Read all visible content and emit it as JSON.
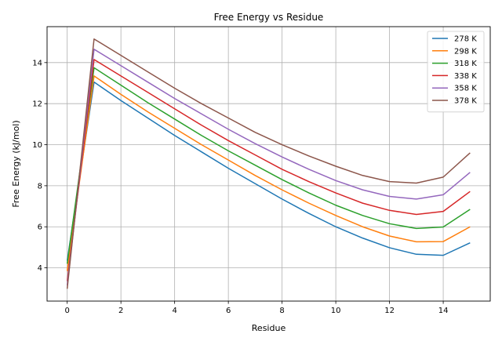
{
  "chart_data": {
    "type": "line",
    "title": "Free Energy vs Residue",
    "xlabel": "Residue",
    "ylabel": "Free Energy (kJ/mol)",
    "xlim": [
      -0.75,
      15.75
    ],
    "ylim": [
      2.38,
      15.75
    ],
    "xticks": [
      0,
      2,
      4,
      6,
      8,
      10,
      12,
      14
    ],
    "yticks": [
      4,
      6,
      8,
      10,
      12,
      14
    ],
    "grid": true,
    "legend_position": "top-right",
    "x": [
      0,
      1,
      2,
      3,
      4,
      5,
      6,
      7,
      8,
      9,
      10,
      11,
      12,
      13,
      14,
      15
    ],
    "series": [
      {
        "name": "278 K",
        "color": "#1f77b4",
        "values": [
          4.35,
          13.05,
          12.15,
          11.3,
          10.45,
          9.65,
          8.85,
          8.1,
          7.35,
          6.65,
          6.0,
          5.45,
          4.98,
          4.66,
          4.61,
          5.22
        ]
      },
      {
        "name": "298 K",
        "color": "#ff7f0e",
        "values": [
          3.85,
          13.35,
          12.45,
          11.6,
          10.8,
          10.0,
          9.25,
          8.5,
          7.8,
          7.15,
          6.55,
          6.0,
          5.55,
          5.27,
          5.28,
          6.0
        ]
      },
      {
        "name": "318 K",
        "color": "#2ca02c",
        "values": [
          4.2,
          13.75,
          12.9,
          12.05,
          11.25,
          10.45,
          9.7,
          9.0,
          8.3,
          7.65,
          7.05,
          6.55,
          6.15,
          5.92,
          5.99,
          6.85
        ]
      },
      {
        "name": "338 K",
        "color": "#d62728",
        "values": [
          3.35,
          14.15,
          13.35,
          12.55,
          11.75,
          10.95,
          10.2,
          9.5,
          8.8,
          8.2,
          7.65,
          7.15,
          6.8,
          6.6,
          6.75,
          7.72
        ]
      },
      {
        "name": "358 K",
        "color": "#9467bd",
        "values": [
          3.15,
          14.65,
          13.85,
          13.05,
          12.25,
          11.5,
          10.75,
          10.05,
          9.4,
          8.8,
          8.25,
          7.8,
          7.48,
          7.35,
          7.56,
          8.65
        ]
      },
      {
        "name": "378 K",
        "color": "#8c564b",
        "values": [
          2.98,
          15.15,
          14.35,
          13.55,
          12.75,
          12.0,
          11.3,
          10.6,
          10.0,
          9.45,
          8.95,
          8.5,
          8.2,
          8.13,
          8.42,
          9.6
        ]
      }
    ]
  }
}
